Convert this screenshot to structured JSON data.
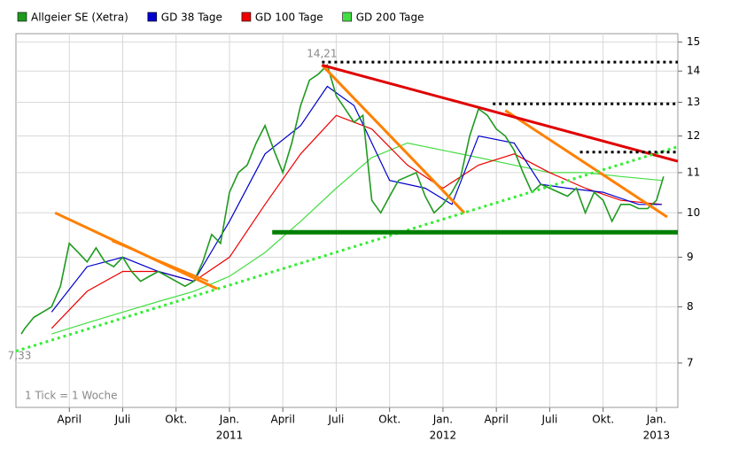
{
  "chart_data": {
    "type": "line",
    "scale": "log",
    "grid": true,
    "xlim": [
      0,
      37.2
    ],
    "ylim": [
      6.3,
      15.3
    ],
    "yticks": [
      7,
      8,
      9,
      10,
      11,
      12,
      13,
      14,
      15
    ],
    "xticks": [
      {
        "value": 3,
        "label": "April"
      },
      {
        "value": 6,
        "label": "Juli"
      },
      {
        "value": 9,
        "label": "Okt."
      },
      {
        "value": 12,
        "label": "Jan."
      },
      {
        "value": 15,
        "label": "April"
      },
      {
        "value": 18,
        "label": "Juli"
      },
      {
        "value": 21,
        "label": "Okt."
      },
      {
        "value": 24,
        "label": "Jan."
      },
      {
        "value": 27,
        "label": "April"
      },
      {
        "value": 30,
        "label": "Juli"
      },
      {
        "value": 33,
        "label": "Okt."
      },
      {
        "value": 36,
        "label": "Jan."
      }
    ],
    "year_labels": [
      {
        "value": 12,
        "label": "2011"
      },
      {
        "value": 24,
        "label": "2012"
      },
      {
        "value": 36,
        "label": "2013"
      }
    ],
    "note": "1 Tick = 1 Woche",
    "annotations": [
      {
        "text": "14,21",
        "x": 17.2,
        "y": 14.21
      },
      {
        "text": "7,33",
        "x": 0.2,
        "y": 7.33
      }
    ],
    "series": [
      {
        "name": "Allgeier SE (Xetra)",
        "color": "#1f9a1f",
        "width": 1.6,
        "x": [
          0.3,
          0.5,
          1,
          1.5,
          2,
          2.5,
          3,
          3.5,
          4,
          4.5,
          5,
          5.5,
          6,
          6.5,
          7,
          7.5,
          8,
          8.5,
          9,
          9.5,
          10,
          10.5,
          11,
          11.5,
          12,
          12.5,
          13,
          13.5,
          14,
          14.5,
          15,
          15.5,
          16,
          16.5,
          17,
          17.5,
          18,
          18.5,
          19,
          19.5,
          20,
          20.5,
          21,
          21.5,
          22,
          22.5,
          23,
          23.5,
          24,
          24.5,
          25,
          25.5,
          26,
          26.5,
          27,
          27.5,
          28,
          28.5,
          29,
          29.5,
          30,
          31,
          31.5,
          32,
          32.5,
          33,
          33.5,
          34,
          34.5,
          35,
          35.5,
          36,
          36.4
        ],
        "values": [
          7.5,
          7.6,
          7.8,
          7.9,
          8.0,
          8.4,
          9.3,
          9.1,
          8.9,
          9.2,
          8.9,
          8.8,
          9.0,
          8.7,
          8.5,
          8.6,
          8.7,
          8.6,
          8.5,
          8.4,
          8.5,
          8.9,
          9.5,
          9.3,
          10.5,
          11.0,
          11.2,
          11.8,
          12.3,
          11.6,
          11.0,
          11.8,
          12.9,
          13.7,
          13.9,
          14.2,
          13.2,
          12.8,
          12.4,
          12.6,
          10.3,
          10.0,
          10.4,
          10.8,
          10.9,
          11.0,
          10.4,
          10.0,
          10.2,
          10.5,
          10.9,
          12.0,
          12.8,
          12.6,
          12.2,
          12.0,
          11.6,
          11.0,
          10.5,
          10.7,
          10.6,
          10.4,
          10.6,
          10.0,
          10.5,
          10.3,
          9.8,
          10.2,
          10.2,
          10.1,
          10.1,
          10.3,
          10.9
        ]
      },
      {
        "name": "GD 38 Tage",
        "color": "#0000cc",
        "width": 1.2,
        "x": [
          2,
          4,
          6,
          8,
          10,
          12,
          14,
          16,
          17.5,
          19,
          21,
          23,
          24.5,
          26,
          28,
          29.5,
          31,
          33,
          35,
          36.3
        ],
        "values": [
          7.9,
          8.8,
          9.0,
          8.7,
          8.5,
          9.8,
          11.5,
          12.3,
          13.5,
          12.9,
          10.8,
          10.6,
          10.2,
          12.0,
          11.8,
          10.7,
          10.6,
          10.5,
          10.2,
          10.2
        ]
      },
      {
        "name": "GD 100 Tage",
        "color": "#ee0000",
        "width": 1.2,
        "x": [
          2,
          4,
          6,
          8,
          10,
          12,
          14,
          16,
          18,
          20,
          22,
          24,
          26,
          28,
          30,
          32,
          34,
          36.3
        ],
        "values": [
          7.6,
          8.3,
          8.7,
          8.7,
          8.5,
          9.0,
          10.2,
          11.5,
          12.6,
          12.2,
          11.2,
          10.6,
          11.2,
          11.5,
          11.0,
          10.6,
          10.3,
          10.2
        ]
      },
      {
        "name": "GD 200 Tage",
        "color": "#44dd44",
        "width": 1.2,
        "x": [
          2,
          4,
          6,
          8,
          10,
          12,
          14,
          16,
          18,
          20,
          22,
          24,
          26,
          28,
          30,
          32,
          34,
          36.3
        ],
        "values": [
          7.5,
          7.7,
          7.9,
          8.1,
          8.3,
          8.6,
          9.1,
          9.8,
          10.6,
          11.4,
          11.8,
          11.6,
          11.4,
          11.2,
          11.0,
          11.0,
          10.9,
          10.8
        ]
      }
    ],
    "trend_lines": [
      {
        "color": "#ff8000",
        "style": "solid",
        "width": 3,
        "x": [
          2.2,
          11.3
        ],
        "y": [
          10.0,
          8.35
        ]
      },
      {
        "color": "#ff8000",
        "style": "solid",
        "width": 2,
        "x": [
          5.4,
          10.8
        ],
        "y": [
          9.35,
          8.5
        ]
      },
      {
        "color": "#ff8000",
        "style": "solid",
        "width": 3,
        "x": [
          17.2,
          25.2
        ],
        "y": [
          14.2,
          10.0
        ]
      },
      {
        "color": "#ff8000",
        "style": "solid",
        "width": 3,
        "x": [
          27.5,
          36.6
        ],
        "y": [
          12.75,
          9.9
        ]
      },
      {
        "color": "#e00000",
        "style": "solid",
        "width": 3,
        "x": [
          17.2,
          37.2
        ],
        "y": [
          14.2,
          11.3
        ]
      },
      {
        "color": "#33ee33",
        "style": "dotted",
        "width": 3,
        "x": [
          0,
          37.2
        ],
        "y": [
          7.2,
          11.7
        ]
      },
      {
        "color": "#008000",
        "style": "solid",
        "width": 5,
        "x": [
          14.4,
          37.2
        ],
        "y": [
          9.55,
          9.55
        ]
      },
      {
        "color": "#000000",
        "style": "dotted",
        "width": 3,
        "x": [
          17.2,
          37.2
        ],
        "y": [
          14.3,
          14.3
        ]
      },
      {
        "color": "#000000",
        "style": "dotted",
        "width": 3,
        "x": [
          26.8,
          37.2
        ],
        "y": [
          12.95,
          12.95
        ]
      },
      {
        "color": "#000000",
        "style": "dotted",
        "width": 3,
        "x": [
          31.7,
          37.2
        ],
        "y": [
          11.55,
          11.55
        ]
      }
    ]
  }
}
